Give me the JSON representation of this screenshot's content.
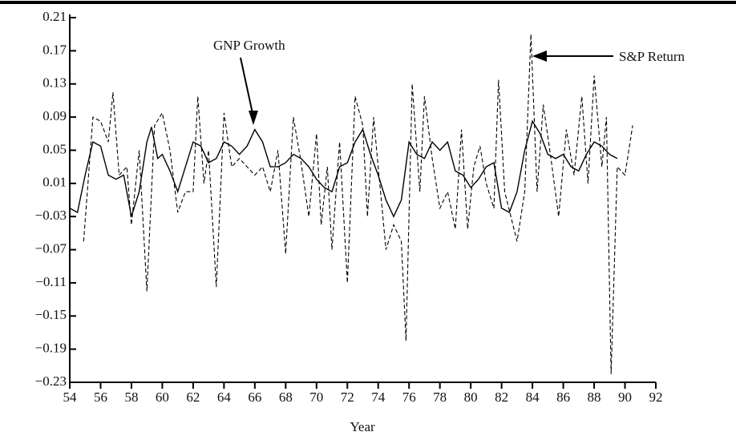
{
  "chart_data": {
    "type": "line",
    "x_label": "Year",
    "xlim": [
      54,
      92
    ],
    "xticks": [
      54,
      56,
      58,
      60,
      62,
      64,
      66,
      68,
      70,
      72,
      74,
      76,
      78,
      80,
      82,
      84,
      86,
      88,
      90,
      92
    ],
    "ylim": [
      -0.23,
      0.21
    ],
    "yticks": [
      {
        "value": -0.23,
        "label": "−0.23"
      },
      {
        "value": -0.19,
        "label": "−0.19"
      },
      {
        "value": -0.15,
        "label": "−0.15"
      },
      {
        "value": -0.11,
        "label": "−0.11"
      },
      {
        "value": -0.07,
        "label": "−0.07"
      },
      {
        "value": -0.03,
        "label": "−0.03"
      },
      0.01,
      0.05,
      0.09,
      0.13,
      0.17,
      0.21
    ],
    "series": [
      {
        "name": "GNP Growth",
        "color": "#000000",
        "dash": false,
        "x": [
          54.0,
          54.5,
          55.0,
          55.5,
          56.0,
          56.5,
          57.0,
          57.5,
          58.0,
          58.5,
          59.0,
          59.3,
          59.7,
          60.0,
          60.5,
          61.0,
          61.5,
          62.0,
          62.5,
          63.0,
          63.5,
          64.0,
          64.5,
          65.0,
          65.5,
          66.0,
          66.5,
          67.0,
          67.5,
          68.0,
          68.5,
          69.0,
          69.5,
          70.0,
          70.5,
          71.0,
          71.5,
          72.0,
          72.5,
          73.0,
          73.5,
          74.0,
          74.5,
          75.0,
          75.5,
          76.0,
          76.5,
          77.0,
          77.5,
          78.0,
          78.5,
          79.0,
          79.5,
          80.0,
          80.5,
          81.0,
          81.5,
          82.0,
          82.5,
          83.0,
          83.5,
          84.0,
          84.5,
          85.0,
          85.5,
          86.0,
          86.5,
          87.0,
          87.5,
          88.0,
          88.5,
          89.0,
          89.5
        ],
        "values": [
          -0.02,
          -0.025,
          0.02,
          0.06,
          0.055,
          0.02,
          0.015,
          0.02,
          -0.03,
          0.0,
          0.06,
          0.078,
          0.04,
          0.045,
          0.025,
          0.0,
          0.03,
          0.06,
          0.055,
          0.035,
          0.04,
          0.06,
          0.055,
          0.045,
          0.055,
          0.075,
          0.06,
          0.03,
          0.03,
          0.035,
          0.045,
          0.04,
          0.03,
          0.015,
          0.005,
          0.0,
          0.03,
          0.035,
          0.06,
          0.075,
          0.045,
          0.02,
          -0.01,
          -0.03,
          -0.01,
          0.06,
          0.045,
          0.04,
          0.06,
          0.05,
          0.06,
          0.025,
          0.02,
          0.005,
          0.015,
          0.03,
          0.035,
          -0.02,
          -0.025,
          0.0,
          0.05,
          0.085,
          0.07,
          0.045,
          0.04,
          0.045,
          0.03,
          0.025,
          0.045,
          0.06,
          0.055,
          0.045,
          0.04
        ]
      },
      {
        "name": "S&P Return",
        "color": "#000000",
        "dash": true,
        "x": [
          54.9,
          55.5,
          56.0,
          56.5,
          56.8,
          57.2,
          57.7,
          58.0,
          58.5,
          59.0,
          59.5,
          60.0,
          60.5,
          61.0,
          61.5,
          62.0,
          62.3,
          62.7,
          63.0,
          63.5,
          64.0,
          64.5,
          65.0,
          65.5,
          66.0,
          66.5,
          67.0,
          67.5,
          68.0,
          68.5,
          69.0,
          69.5,
          70.0,
          70.3,
          70.7,
          71.0,
          71.5,
          72.0,
          72.5,
          73.0,
          73.3,
          73.7,
          74.0,
          74.5,
          75.0,
          75.5,
          75.8,
          76.2,
          76.7,
          77.0,
          77.5,
          78.0,
          78.5,
          79.0,
          79.4,
          79.8,
          80.2,
          80.6,
          81.0,
          81.5,
          81.8,
          82.2,
          82.6,
          83.0,
          83.5,
          83.9,
          84.3,
          84.7,
          85.2,
          85.7,
          86.2,
          86.7,
          87.2,
          87.6,
          88.0,
          88.5,
          88.8,
          89.1,
          89.5,
          90.0,
          90.5
        ],
        "values": [
          -0.06,
          0.09,
          0.085,
          0.06,
          0.12,
          0.02,
          0.03,
          -0.04,
          0.05,
          -0.12,
          0.08,
          0.095,
          0.05,
          -0.025,
          0.0,
          0.0,
          0.115,
          0.01,
          0.05,
          -0.115,
          0.095,
          0.03,
          0.04,
          0.03,
          0.02,
          0.03,
          0.0,
          0.05,
          -0.075,
          0.09,
          0.035,
          -0.03,
          0.07,
          -0.04,
          0.03,
          -0.07,
          0.06,
          -0.11,
          0.115,
          0.08,
          -0.03,
          0.09,
          0.03,
          -0.07,
          -0.04,
          -0.06,
          -0.18,
          0.13,
          0.0,
          0.115,
          0.04,
          -0.02,
          0.0,
          -0.045,
          0.075,
          -0.045,
          0.03,
          0.055,
          0.01,
          -0.02,
          0.135,
          0.0,
          -0.03,
          -0.06,
          0.0,
          0.19,
          0.0,
          0.105,
          0.04,
          -0.03,
          0.075,
          0.02,
          0.115,
          0.01,
          0.14,
          0.03,
          0.09,
          -0.22,
          0.03,
          0.02,
          0.08
        ]
      }
    ]
  }
}
